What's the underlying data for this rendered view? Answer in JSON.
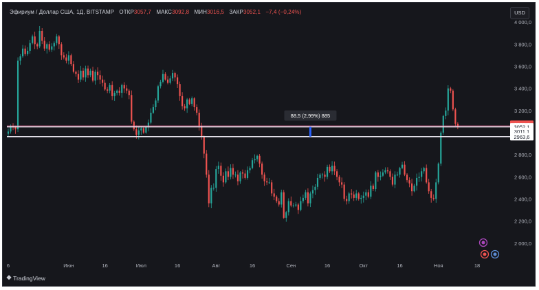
{
  "header": {
    "symbol": "Эфириум / Доллар США, 1Д, BITSTAMP",
    "open_label": "ОТКР",
    "open_value": "3057,7",
    "high_label": "МАКС",
    "high_value": "3092,8",
    "low_label": "МИН",
    "low_value": "3016,5",
    "close_label": "ЗАКР",
    "close_value": "3052,1",
    "change": "−7,4 (−0,24%)"
  },
  "currency_button": "USD",
  "logo_text": "TradingView",
  "measure_label": "88,5 (2,99%) 885",
  "price_tags": {
    "last": "3052,1",
    "upper": "3052,1",
    "middle": "3011,1",
    "lower": "2963,6"
  },
  "colors": {
    "background": "#16171c",
    "up": "#26a69a",
    "down": "#ef5350",
    "text": "#d1d4dc",
    "measure": "#2962ff"
  },
  "chart_data": {
    "type": "candlestick",
    "title": "Эфириум / Доллар США, 1Д, BITSTAMP",
    "ylim": [
      1850,
      4100
    ],
    "y_ticks": [
      {
        "value": 4000,
        "label": "4 000,0"
      },
      {
        "value": 3800,
        "label": "3 800,0"
      },
      {
        "value": 3600,
        "label": "3 600,0"
      },
      {
        "value": 3400,
        "label": "3 400,0"
      },
      {
        "value": 3200,
        "label": "3 200,0"
      },
      {
        "value": 2800,
        "label": "2 800,0"
      },
      {
        "value": 2600,
        "label": "2 600,0"
      },
      {
        "value": 2400,
        "label": "2 400,0"
      },
      {
        "value": 2200,
        "label": "2 200,0"
      },
      {
        "value": 2000,
        "label": "2 000,0"
      }
    ],
    "x_ticks": [
      {
        "day": 0,
        "label": "6"
      },
      {
        "day": 25,
        "label": "Июн"
      },
      {
        "day": 40,
        "label": "16"
      },
      {
        "day": 55,
        "label": "Июл"
      },
      {
        "day": 70,
        "label": "16"
      },
      {
        "day": 86,
        "label": "Авг"
      },
      {
        "day": 101,
        "label": "16"
      },
      {
        "day": 117,
        "label": "Сен"
      },
      {
        "day": 132,
        "label": "16"
      },
      {
        "day": 147,
        "label": "Окт"
      },
      {
        "day": 162,
        "label": "16"
      },
      {
        "day": 178,
        "label": "Ноя"
      },
      {
        "day": 194,
        "label": "18"
      }
    ],
    "horizontal_levels": [
      3052.1,
      2963.6
    ],
    "measure": {
      "from": 2963.6,
      "to": 3052.1,
      "day": 125
    },
    "closes": [
      3010,
      3060,
      3050,
      3030,
      3650,
      3690,
      3760,
      3710,
      3740,
      3810,
      3870,
      3800,
      3780,
      3920,
      3830,
      3760,
      3800,
      3750,
      3780,
      3810,
      3870,
      3800,
      3700,
      3680,
      3650,
      3700,
      3620,
      3550,
      3530,
      3480,
      3560,
      3500,
      3580,
      3520,
      3560,
      3470,
      3550,
      3520,
      3480,
      3450,
      3390,
      3380,
      3430,
      3330,
      3360,
      3380,
      3360,
      3430,
      3400,
      3380,
      3340,
      3100,
      3030,
      2980,
      3020,
      3040,
      3000,
      3050,
      3090,
      3180,
      3230,
      3290,
      3420,
      3460,
      3530,
      3480,
      3450,
      3490,
      3540,
      3500,
      3440,
      3330,
      3240,
      3220,
      3300,
      3260,
      3310,
      3230,
      3180,
      3060,
      2960,
      2810,
      2620,
      2360,
      2500,
      2500,
      2670,
      2700,
      2610,
      2550,
      2650,
      2600,
      2680,
      2620,
      2620,
      2560,
      2640,
      2630,
      2590,
      2660,
      2680,
      2750,
      2760,
      2790,
      2720,
      2620,
      2560,
      2550,
      2550,
      2450,
      2420,
      2380,
      2350,
      2460,
      2230,
      2280,
      2380,
      2340,
      2340,
      2350,
      2300,
      2380,
      2410,
      2460,
      2360,
      2450,
      2480,
      2510,
      2590,
      2620,
      2620,
      2600,
      2690,
      2650,
      2700,
      2650,
      2600,
      2550,
      2530,
      2400,
      2380,
      2450,
      2440,
      2410,
      2450,
      2400,
      2410,
      2430,
      2460,
      2420,
      2520,
      2490,
      2640,
      2600,
      2610,
      2640,
      2660,
      2650,
      2600,
      2530,
      2620,
      2620,
      2680,
      2710,
      2620,
      2570,
      2540,
      2470,
      2520,
      2590,
      2600,
      2650,
      2680,
      2550,
      2470,
      2410,
      2400,
      2550,
      2720,
      3000,
      3150,
      3200,
      3400,
      3380,
      3210,
      3080,
      3052
    ]
  }
}
